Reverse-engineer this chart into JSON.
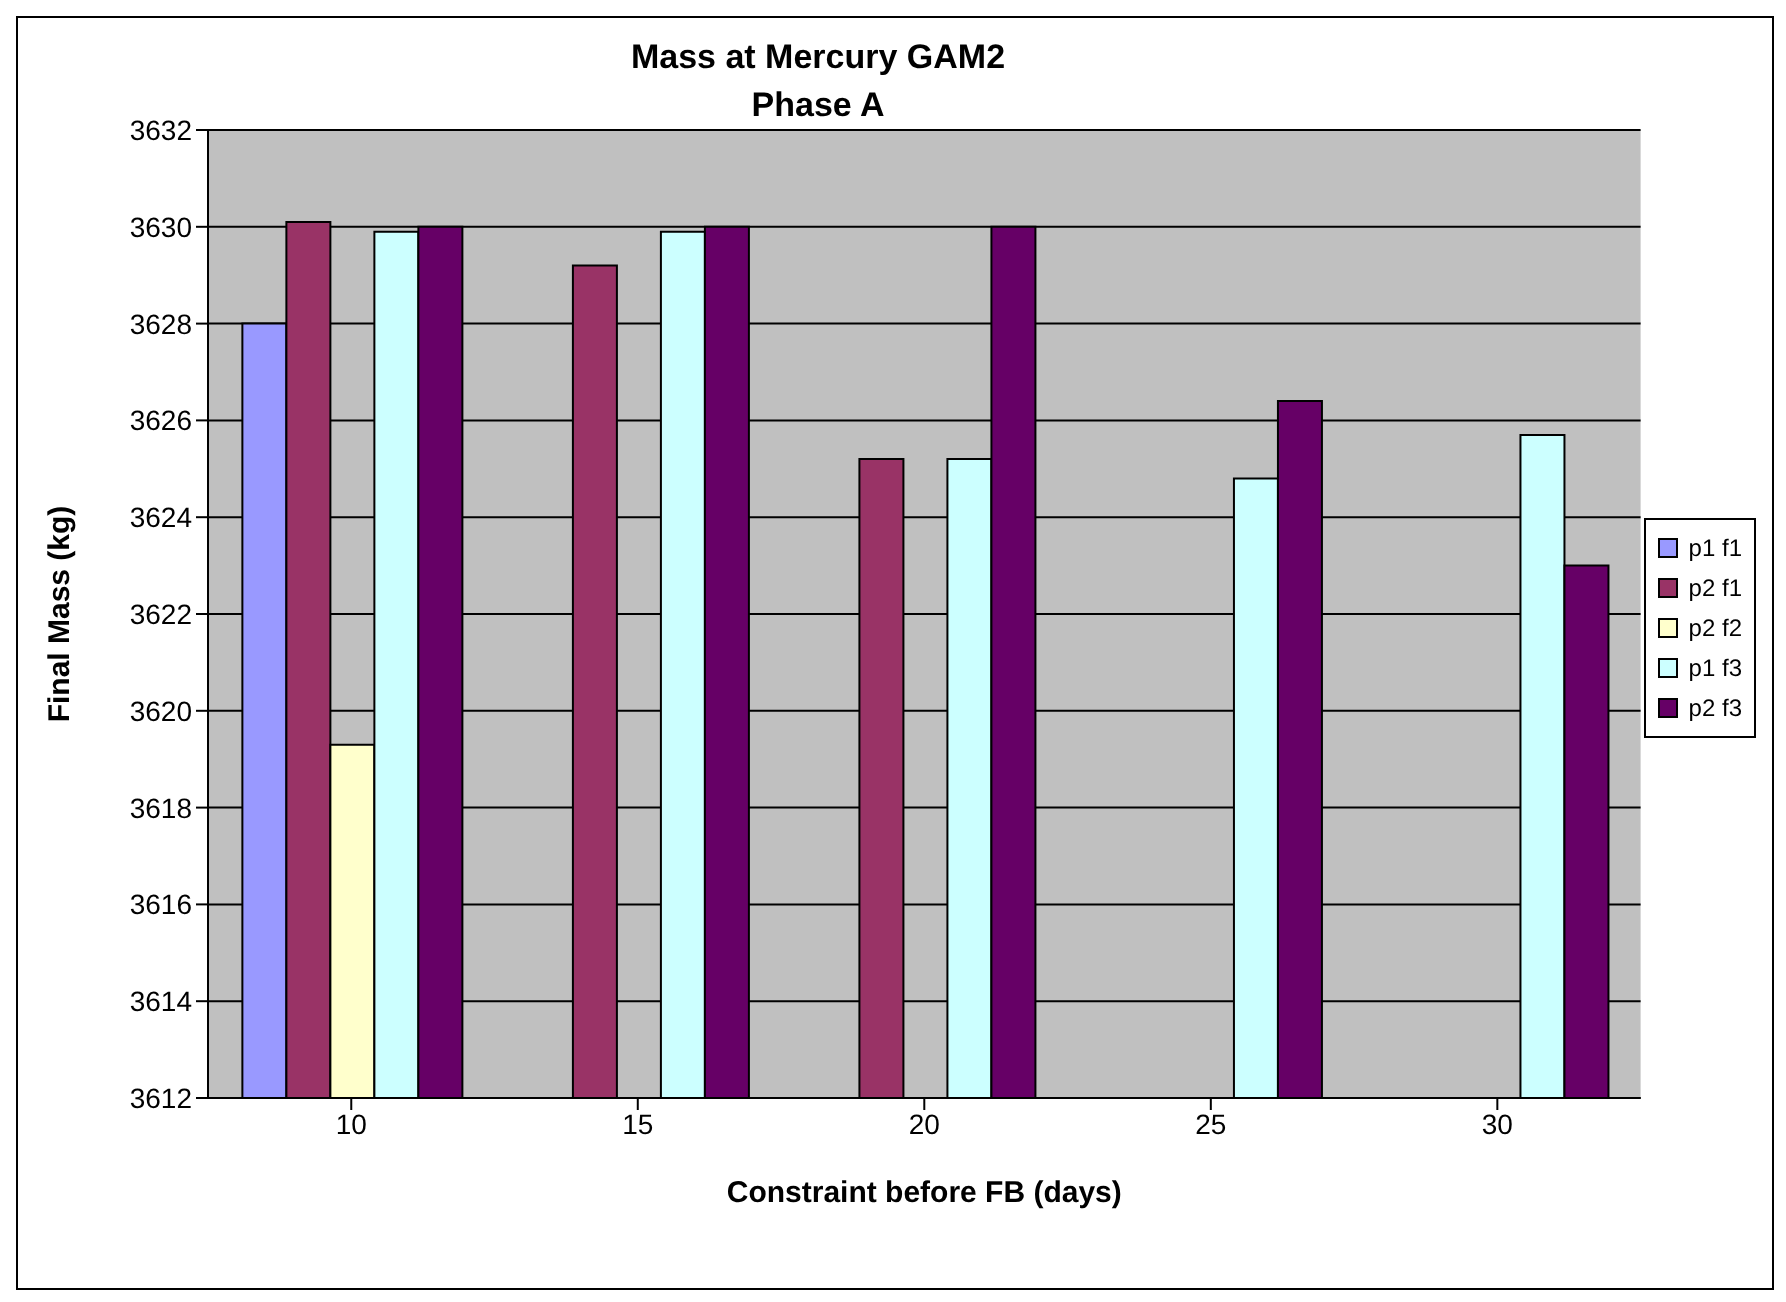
{
  "chart_data": {
    "type": "bar",
    "title": "Mass at Mercury GAM2\nPhase A",
    "xlabel": "Constraint before FB (days)",
    "ylabel": "Final Mass (kg)",
    "categories": [
      "10",
      "15",
      "20",
      "25",
      "30"
    ],
    "series": [
      {
        "name": "p1 f1",
        "color": "#9999ff",
        "values": [
          3628.0,
          null,
          null,
          null,
          null
        ]
      },
      {
        "name": "p2 f1",
        "color": "#993366",
        "values": [
          3630.1,
          3629.2,
          3625.2,
          null,
          null
        ]
      },
      {
        "name": "p2 f2",
        "color": "#ffffcc",
        "values": [
          3619.3,
          null,
          null,
          null,
          null
        ]
      },
      {
        "name": "p1 f3",
        "color": "#ccffff",
        "values": [
          3629.9,
          3629.9,
          3625.2,
          3624.8,
          3625.7
        ]
      },
      {
        "name": "p2 f3",
        "color": "#660066",
        "values": [
          3630.0,
          3630.0,
          3630.0,
          3626.4,
          3623.0
        ]
      }
    ],
    "ylim": [
      3612,
      3632
    ],
    "yticks": [
      3612,
      3614,
      3616,
      3618,
      3620,
      3622,
      3624,
      3626,
      3628,
      3630,
      3632
    ],
    "grid": "y",
    "legend": "right"
  }
}
